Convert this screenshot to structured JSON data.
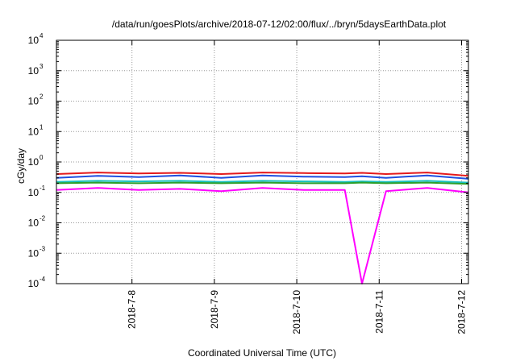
{
  "chart_data": {
    "type": "line",
    "title": "/data/run/goesPlots/archive/2018-07-12/02:00/flux/../bryn/5daysEarthData.plot",
    "xlabel": "Coordinated Universal Time (UTC)",
    "ylabel": "cGy/day",
    "yscale": "log",
    "ylim": [
      0.0001,
      10000
    ],
    "xlim": [
      "2018-07-07T02:00",
      "2018-07-12T02:00"
    ],
    "grid": true,
    "y_ticks": [
      {
        "base": "10",
        "exp": "-4",
        "value": 0.0001
      },
      {
        "base": "10",
        "exp": "-3",
        "value": 0.001
      },
      {
        "base": "10",
        "exp": "-2",
        "value": 0.01
      },
      {
        "base": "10",
        "exp": "-1",
        "value": 0.1
      },
      {
        "base": "10",
        "exp": "0",
        "value": 1
      },
      {
        "base": "10",
        "exp": "1",
        "value": 10
      },
      {
        "base": "10",
        "exp": "2",
        "value": 100
      },
      {
        "base": "10",
        "exp": "3",
        "value": 1000
      },
      {
        "base": "10",
        "exp": "4",
        "value": 10000
      }
    ],
    "x_ticks": [
      {
        "label": "2018-7-8",
        "value": "2018-07-08T00:00"
      },
      {
        "label": "2018-7-9",
        "value": "2018-07-09T00:00"
      },
      {
        "label": "2018-7-10",
        "value": "2018-07-10T00:00"
      },
      {
        "label": "2018-7-11",
        "value": "2018-07-11T00:00"
      },
      {
        "label": "2018-7-12",
        "value": "2018-07-12T00:00"
      }
    ],
    "x": [
      "2018-07-07T02:00",
      "2018-07-07T14:00",
      "2018-07-08T02:00",
      "2018-07-08T14:00",
      "2018-07-09T02:00",
      "2018-07-09T14:00",
      "2018-07-10T02:00",
      "2018-07-10T14:00",
      "2018-07-10T19:00",
      "2018-07-11T02:00",
      "2018-07-11T14:00",
      "2018-07-12T02:00"
    ],
    "series": [
      {
        "color": "#e41a1c",
        "values": [
          0.4,
          0.45,
          0.42,
          0.44,
          0.4,
          0.45,
          0.43,
          0.42,
          0.44,
          0.4,
          0.45,
          0.35
        ]
      },
      {
        "color": "#1f4fe0",
        "values": [
          0.3,
          0.35,
          0.32,
          0.36,
          0.3,
          0.36,
          0.33,
          0.32,
          0.34,
          0.3,
          0.36,
          0.28
        ]
      },
      {
        "color": "#17c0c0",
        "values": [
          0.22,
          0.24,
          0.23,
          0.24,
          0.22,
          0.24,
          0.23,
          0.22,
          0.23,
          0.22,
          0.24,
          0.21
        ]
      },
      {
        "color": "#2ca02c",
        "values": [
          0.2,
          0.21,
          0.2,
          0.21,
          0.2,
          0.21,
          0.2,
          0.2,
          0.21,
          0.2,
          0.21,
          0.19
        ]
      },
      {
        "color": "#ff00ff",
        "values": [
          0.12,
          0.14,
          0.12,
          0.13,
          0.11,
          0.14,
          0.12,
          0.12,
          0.0001,
          0.11,
          0.14,
          0.1
        ]
      }
    ]
  }
}
